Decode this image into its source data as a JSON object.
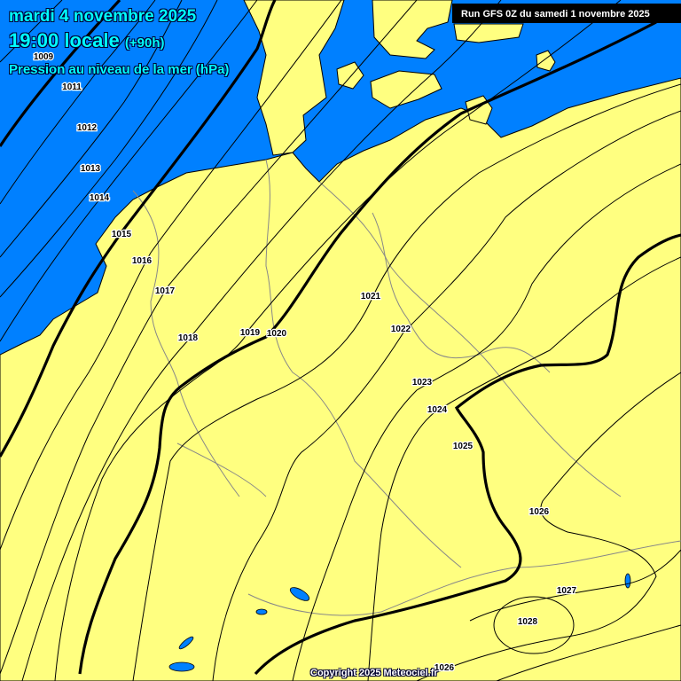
{
  "header": {
    "date": "mardi 4 novembre 2025",
    "time": "19:00 locale",
    "lead": "(+90h)",
    "field": "Pression au niveau de la mer (hPa)"
  },
  "run_info": "Run GFS 0Z du samedi 1 novembre 2025",
  "copyright": "Copyright 2025 Meteociel.fr",
  "colors": {
    "sea": "#0080ff",
    "land": "#ffff80",
    "isobar": "#000000",
    "title": "#00ffff"
  },
  "isobar_labels": [
    "1009",
    "1011",
    "1012",
    "1013",
    "1014",
    "1015",
    "1016",
    "1017",
    "1018",
    "1019",
    "1020",
    "1021",
    "1022",
    "1023",
    "1024",
    "1025",
    "1026",
    "1027",
    "1028",
    "1026"
  ]
}
